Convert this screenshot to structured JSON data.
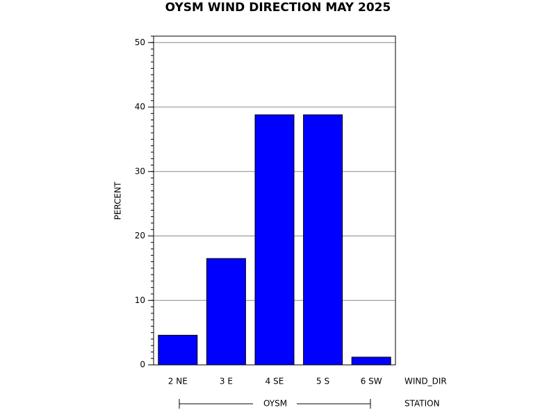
{
  "chart_data": {
    "type": "bar",
    "title": "OYSM WIND DIRECTION MAY 2025",
    "y_label": "PERCENT",
    "x_label": "WIND_DIR",
    "group_label": "STATION",
    "group": "OYSM",
    "categories": [
      "2 NE",
      "3 E",
      "4 SE",
      "5 S",
      "6 SW"
    ],
    "values": [
      4.6,
      16.5,
      38.8,
      38.8,
      1.2
    ],
    "color": "#0000ff",
    "ylim": [
      0,
      51
    ],
    "yticks": [
      0,
      10,
      20,
      30,
      40,
      50
    ],
    "yminorticks": [
      0,
      1,
      2,
      3,
      4,
      5,
      6,
      7,
      8,
      9,
      10,
      11,
      12,
      13,
      14,
      15,
      16,
      17,
      18,
      19,
      20,
      21,
      22,
      23,
      24,
      25,
      26,
      27,
      28,
      29,
      30,
      31,
      32,
      33,
      34,
      35,
      36,
      37,
      38,
      39,
      40,
      41,
      42,
      43,
      44,
      45,
      46,
      47,
      48,
      49,
      50,
      51
    ],
    "grid": true
  }
}
